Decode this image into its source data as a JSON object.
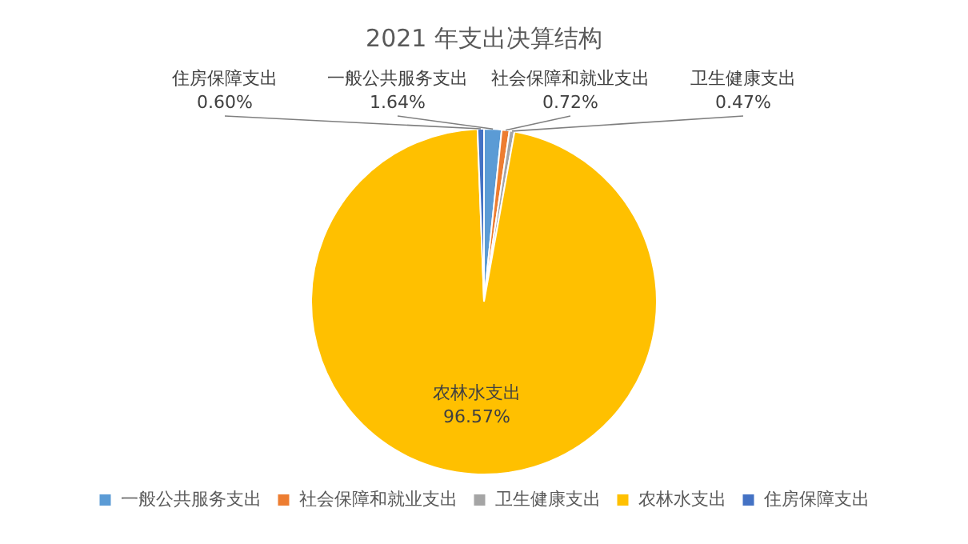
{
  "chart_data": {
    "type": "pie",
    "title": "2021 年支出决算结构",
    "categories": [
      "一般公共服务支出",
      "社会保障和就业支出",
      "卫生健康支出",
      "农林水支出",
      "住房保障支出"
    ],
    "values": [
      1.64,
      0.72,
      0.47,
      96.57,
      0.6
    ],
    "colors": [
      "#5b9bd5",
      "#ed7d31",
      "#a5a5a5",
      "#ffc000",
      "#4472c4"
    ],
    "value_labels": [
      "1.64%",
      "0.72%",
      "0.47%",
      "96.57%",
      "0.60%"
    ],
    "legend": "bottom"
  }
}
